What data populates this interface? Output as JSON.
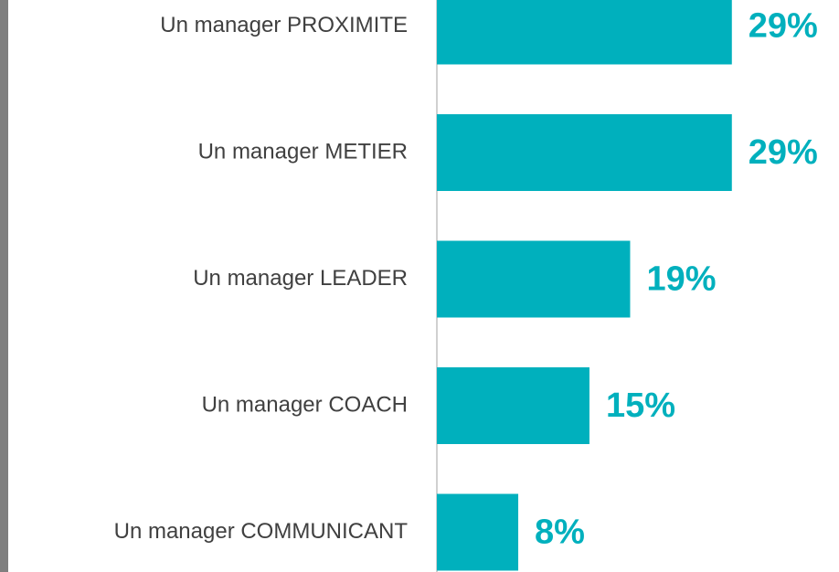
{
  "chart_data": {
    "type": "bar",
    "orientation": "horizontal",
    "categories": [
      "Un manager PROXIMITE",
      "Un manager METIER",
      "Un manager LEADER",
      "Un manager COACH",
      "Un manager COMMUNICANT"
    ],
    "values": [
      29,
      29,
      19,
      15,
      8
    ],
    "value_labels": [
      "29%",
      "29%",
      "19%",
      "15%",
      "8%"
    ],
    "color": "#00b0bd"
  }
}
